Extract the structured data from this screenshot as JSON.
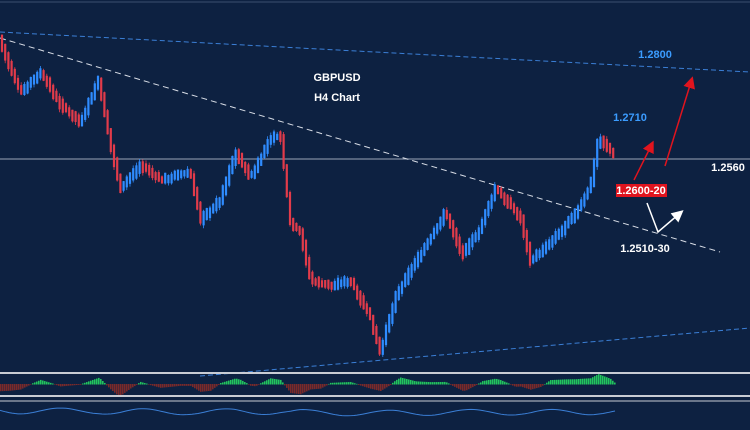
{
  "title": "GBPUSD",
  "subtitle": "H4 Chart",
  "levels": {
    "target_high": "1.2800",
    "recent_high": "1.2710",
    "current": "1.2560",
    "resistance_zone": "1.2600-20",
    "support_zone": "1.2510-30"
  }
}
